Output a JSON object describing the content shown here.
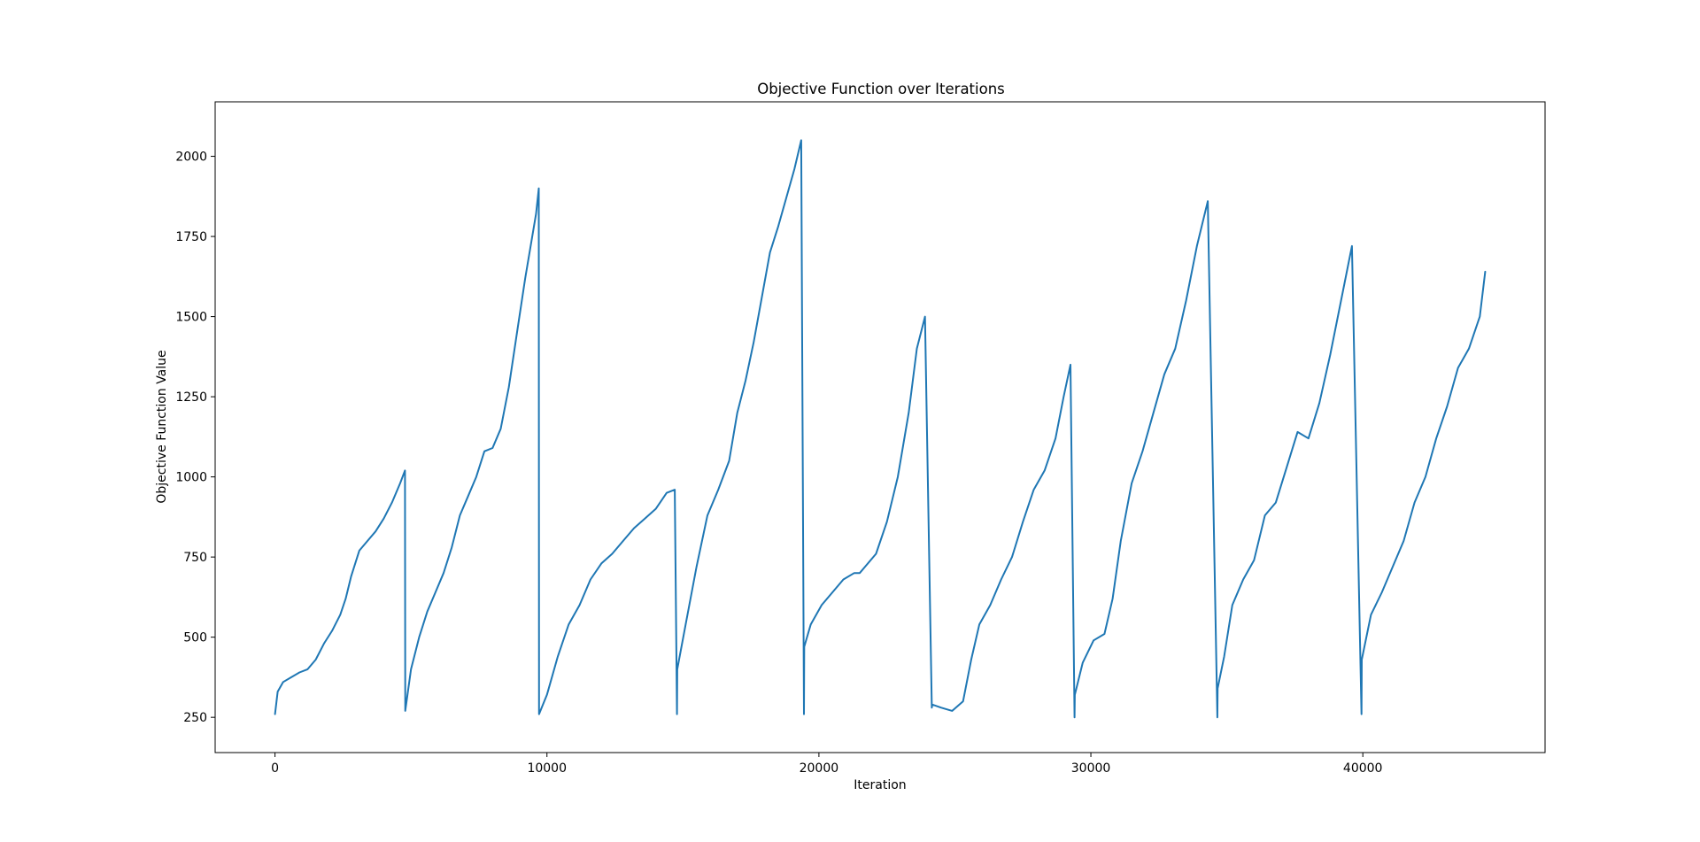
{
  "chart_data": {
    "type": "line",
    "title": "Objective Function over Iterations",
    "xlabel": "Iteration",
    "ylabel": "Objective Function Value",
    "xlim": [
      -2200,
      46700
    ],
    "ylim": [
      140,
      2170
    ],
    "xticks": [
      "0",
      "10000",
      "20000",
      "30000",
      "40000"
    ],
    "xtick_values": [
      0,
      10000,
      20000,
      30000,
      40000
    ],
    "yticks": [
      "250",
      "500",
      "750",
      "1000",
      "1250",
      "1500",
      "1750",
      "2000"
    ],
    "ytick_values": [
      250,
      500,
      750,
      1000,
      1250,
      1500,
      1750,
      2000
    ],
    "grid": false,
    "legend": "none",
    "series": [
      {
        "color": "#1f77b4",
        "x": [
          0,
          100,
          300,
          600,
          900,
          1200,
          1500,
          1800,
          2100,
          2400,
          2600,
          2800,
          3100,
          3400,
          3700,
          4000,
          4300,
          4600,
          4780,
          4790,
          5000,
          5300,
          5600,
          5900,
          6200,
          6500,
          6800,
          7100,
          7400,
          7700,
          8000,
          8300,
          8600,
          8900,
          9200,
          9400,
          9600,
          9700,
          9710,
          10000,
          10400,
          10800,
          11200,
          11600,
          12000,
          12400,
          12800,
          13200,
          13600,
          14000,
          14400,
          14700,
          14780,
          14790,
          15100,
          15500,
          15900,
          16300,
          16700,
          17000,
          17300,
          17600,
          17900,
          18200,
          18500,
          18800,
          19100,
          19350,
          19450,
          19460,
          19700,
          20100,
          20500,
          20900,
          21300,
          21500,
          21700,
          22100,
          22500,
          22900,
          23300,
          23600,
          23900,
          24150,
          24160,
          24500,
          24900,
          25300,
          25600,
          25900,
          26300,
          26700,
          27100,
          27500,
          27900,
          28300,
          28700,
          29000,
          29250,
          29400,
          29410,
          29700,
          30100,
          30500,
          30800,
          31100,
          31500,
          31900,
          32300,
          32700,
          33100,
          33500,
          33900,
          34300,
          34650,
          34660,
          34900,
          35200,
          35600,
          36000,
          36400,
          36800,
          37200,
          37600,
          38000,
          38400,
          38800,
          39200,
          39600,
          39950,
          39960,
          40300,
          40700,
          41100,
          41500,
          41900,
          42300,
          42700,
          43100,
          43500,
          43900,
          44300,
          44500
        ],
        "y": [
          260,
          330,
          360,
          375,
          390,
          400,
          430,
          480,
          520,
          570,
          620,
          690,
          770,
          800,
          830,
          870,
          920,
          980,
          1020,
          270,
          400,
          500,
          580,
          640,
          700,
          780,
          880,
          940,
          1000,
          1080,
          1090,
          1150,
          1280,
          1450,
          1620,
          1720,
          1820,
          1900,
          260,
          320,
          440,
          540,
          600,
          680,
          730,
          760,
          800,
          840,
          870,
          900,
          950,
          960,
          260,
          400,
          540,
          720,
          880,
          960,
          1050,
          1200,
          1300,
          1420,
          1560,
          1700,
          1780,
          1870,
          1960,
          2050,
          260,
          470,
          540,
          600,
          640,
          680,
          700,
          700,
          720,
          760,
          860,
          1000,
          1200,
          1400,
          1500,
          280,
          290,
          280,
          270,
          300,
          430,
          540,
          600,
          680,
          750,
          860,
          960,
          1020,
          1120,
          1250,
          1350,
          250,
          320,
          420,
          490,
          510,
          620,
          800,
          980,
          1080,
          1200,
          1320,
          1400,
          1550,
          1720,
          1860,
          250,
          340,
          440,
          600,
          680,
          740,
          880,
          920,
          1030,
          1140,
          1120,
          1230,
          1380,
          1550,
          1720,
          260,
          430,
          570,
          640,
          720,
          800,
          920,
          1000,
          1120,
          1220,
          1340,
          1400,
          1500,
          1640
        ]
      }
    ]
  }
}
